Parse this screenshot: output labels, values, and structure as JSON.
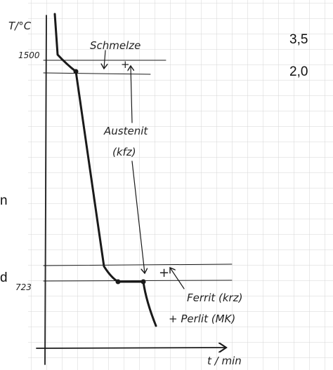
{
  "axes": {
    "y_label": "T/°C",
    "x_label": "t / min",
    "ticks": [
      "1500",
      "723"
    ]
  },
  "labels": {
    "schmelze": "Schmelze",
    "plus_top": "+",
    "austenit": "Austenit",
    "austenit_lattice": "(kfz)",
    "plus_bottom": "+",
    "ferrit": "Ferrit (krz)",
    "perlit": "+ Perlit (MK)"
  },
  "margin_left": [
    "n",
    "d"
  ],
  "margin_right": [
    "3,5",
    "2,0"
  ]
}
